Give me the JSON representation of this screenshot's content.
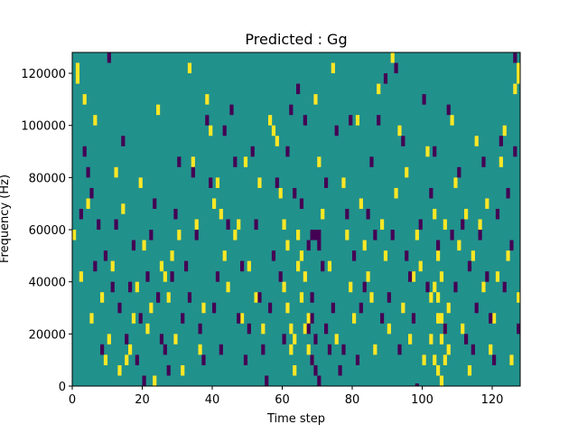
{
  "chart_data": {
    "type": "heatmap",
    "title": "Predicted : Gg",
    "xlabel": "Time step",
    "ylabel": "Frequency (Hz)",
    "xlim": [
      0,
      128
    ],
    "ylim": [
      0,
      128000
    ],
    "x_ticks": [
      0,
      20,
      40,
      60,
      80,
      100,
      120
    ],
    "y_ticks": [
      0,
      20000,
      40000,
      60000,
      80000,
      100000,
      120000
    ],
    "x_tick_labels": [
      "0",
      "20",
      "40",
      "60",
      "80",
      "100",
      "120"
    ],
    "y_tick_labels": [
      "0",
      "20000",
      "40000",
      "60000",
      "80000",
      "100000",
      "120000"
    ],
    "grid": false,
    "colormap": "viridis",
    "color_levels": {
      "low": "#440154",
      "mid": "#21918c",
      "high": "#fde725"
    },
    "background_level": "mid",
    "bin_height_hz": 4000,
    "high_cells": [
      [
        1,
        123
      ],
      [
        1,
        119
      ],
      [
        3,
        111
      ],
      [
        4,
        71
      ],
      [
        6,
        103
      ],
      [
        12,
        83
      ],
      [
        14,
        69
      ],
      [
        10,
        19
      ],
      [
        9,
        11
      ],
      [
        13,
        7
      ],
      [
        16,
        15
      ],
      [
        17,
        27
      ],
      [
        18,
        39
      ],
      [
        20,
        55
      ],
      [
        21,
        23
      ],
      [
        22,
        31
      ],
      [
        23,
        3
      ],
      [
        25,
        47
      ],
      [
        26,
        43
      ],
      [
        27,
        35
      ],
      [
        28,
        51
      ],
      [
        29,
        19
      ],
      [
        31,
        7
      ],
      [
        33,
        123
      ],
      [
        34,
        87
      ],
      [
        35,
        63
      ],
      [
        36,
        15
      ],
      [
        38,
        111
      ],
      [
        39,
        99
      ],
      [
        40,
        71
      ],
      [
        41,
        79
      ],
      [
        42,
        67
      ],
      [
        44,
        39
      ],
      [
        46,
        59
      ],
      [
        48,
        27
      ],
      [
        50,
        47
      ],
      [
        52,
        35
      ],
      [
        54,
        23
      ],
      [
        56,
        103
      ],
      [
        58,
        95
      ],
      [
        59,
        75
      ],
      [
        60,
        63
      ],
      [
        61,
        55
      ],
      [
        61,
        31
      ],
      [
        62,
        15
      ],
      [
        63,
        7
      ],
      [
        64,
        59
      ],
      [
        65,
        51
      ],
      [
        66,
        43
      ],
      [
        67,
        27
      ],
      [
        68,
        11
      ],
      [
        70,
        87
      ],
      [
        71,
        67
      ],
      [
        73,
        47
      ],
      [
        75,
        19
      ],
      [
        77,
        79
      ],
      [
        78,
        59
      ],
      [
        79,
        39
      ],
      [
        80,
        27
      ],
      [
        82,
        71
      ],
      [
        83,
        55
      ],
      [
        84,
        43
      ],
      [
        85,
        35
      ],
      [
        86,
        15
      ],
      [
        88,
        63
      ],
      [
        89,
        51
      ],
      [
        90,
        23
      ],
      [
        91,
        127
      ],
      [
        92,
        75
      ],
      [
        94,
        31
      ],
      [
        96,
        19
      ],
      [
        97,
        43
      ],
      [
        98,
        59
      ],
      [
        100,
        11
      ],
      [
        101,
        91
      ],
      [
        102,
        35
      ],
      [
        103,
        67
      ],
      [
        104,
        51
      ],
      [
        104,
        27
      ],
      [
        105,
        43
      ],
      [
        105,
        19
      ],
      [
        106,
        63
      ],
      [
        106,
        11
      ],
      [
        107,
        31
      ],
      [
        108,
        103
      ],
      [
        109,
        79
      ],
      [
        110,
        55
      ],
      [
        111,
        23
      ],
      [
        113,
        7
      ],
      [
        115,
        95
      ],
      [
        117,
        39
      ],
      [
        118,
        71
      ],
      [
        120,
        27
      ],
      [
        122,
        87
      ],
      [
        124,
        51
      ],
      [
        125,
        11
      ],
      [
        126,
        115
      ],
      [
        127,
        123
      ],
      [
        127,
        119
      ],
      [
        127,
        35
      ],
      [
        0,
        59
      ],
      [
        2,
        43
      ],
      [
        5,
        27
      ],
      [
        8,
        35
      ],
      [
        11,
        47
      ],
      [
        15,
        11
      ],
      [
        19,
        79
      ],
      [
        24,
        107
      ],
      [
        30,
        59
      ],
      [
        37,
        31
      ],
      [
        43,
        51
      ],
      [
        47,
        63
      ],
      [
        49,
        87
      ],
      [
        53,
        79
      ],
      [
        57,
        99
      ],
      [
        69,
        111
      ],
      [
        74,
        123
      ],
      [
        81,
        103
      ],
      [
        87,
        115
      ],
      [
        93,
        99
      ],
      [
        95,
        83
      ],
      [
        99,
        47
      ],
      [
        112,
        67
      ],
      [
        114,
        51
      ],
      [
        116,
        63
      ],
      [
        119,
        15
      ],
      [
        121,
        43
      ],
      [
        123,
        99
      ],
      [
        62,
        23
      ],
      [
        63,
        19
      ],
      [
        64,
        47
      ],
      [
        60,
        39
      ],
      [
        65,
        35
      ],
      [
        66,
        23
      ],
      [
        67,
        15
      ],
      [
        103,
        39
      ],
      [
        104,
        35
      ],
      [
        105,
        27
      ],
      [
        106,
        23
      ],
      [
        102,
        19
      ],
      [
        107,
        15
      ],
      [
        103,
        11
      ],
      [
        104,
        7
      ],
      [
        105,
        3
      ]
    ],
    "low_cells": [
      [
        10,
        127
      ],
      [
        4,
        83
      ],
      [
        5,
        75
      ],
      [
        7,
        63
      ],
      [
        9,
        51
      ],
      [
        11,
        39
      ],
      [
        13,
        31
      ],
      [
        15,
        19
      ],
      [
        18,
        11
      ],
      [
        20,
        3
      ],
      [
        21,
        43
      ],
      [
        22,
        59
      ],
      [
        24,
        35
      ],
      [
        26,
        15
      ],
      [
        27,
        7
      ],
      [
        29,
        67
      ],
      [
        31,
        27
      ],
      [
        32,
        47
      ],
      [
        34,
        83
      ],
      [
        36,
        23
      ],
      [
        38,
        103
      ],
      [
        40,
        31
      ],
      [
        42,
        15
      ],
      [
        43,
        99
      ],
      [
        45,
        107
      ],
      [
        47,
        27
      ],
      [
        49,
        11
      ],
      [
        51,
        91
      ],
      [
        53,
        35
      ],
      [
        55,
        3
      ],
      [
        57,
        51
      ],
      [
        59,
        43
      ],
      [
        60,
        19
      ],
      [
        62,
        107
      ],
      [
        65,
        71
      ],
      [
        67,
        55
      ],
      [
        68,
        35
      ],
      [
        69,
        59
      ],
      [
        70,
        55
      ],
      [
        71,
        47
      ],
      [
        72,
        23
      ],
      [
        73,
        15
      ],
      [
        74,
        31
      ],
      [
        76,
        7
      ],
      [
        78,
        67
      ],
      [
        80,
        51
      ],
      [
        81,
        11
      ],
      [
        83,
        39
      ],
      [
        85,
        87
      ],
      [
        86,
        59
      ],
      [
        87,
        103
      ],
      [
        88,
        27
      ],
      [
        89,
        119
      ],
      [
        90,
        35
      ],
      [
        91,
        59
      ],
      [
        92,
        123
      ],
      [
        93,
        15
      ],
      [
        95,
        51
      ],
      [
        97,
        27
      ],
      [
        98,
        0
      ],
      [
        99,
        63
      ],
      [
        100,
        111
      ],
      [
        101,
        39
      ],
      [
        102,
        75
      ],
      [
        103,
        91
      ],
      [
        104,
        55
      ],
      [
        106,
        23
      ],
      [
        107,
        107
      ],
      [
        109,
        39
      ],
      [
        110,
        83
      ],
      [
        111,
        63
      ],
      [
        113,
        47
      ],
      [
        114,
        15
      ],
      [
        115,
        31
      ],
      [
        116,
        59
      ],
      [
        117,
        87
      ],
      [
        118,
        43
      ],
      [
        119,
        27
      ],
      [
        120,
        11
      ],
      [
        121,
        67
      ],
      [
        122,
        95
      ],
      [
        123,
        39
      ],
      [
        124,
        75
      ],
      [
        125,
        55
      ],
      [
        126,
        91
      ],
      [
        127,
        23
      ],
      [
        2,
        67
      ],
      [
        3,
        91
      ],
      [
        6,
        47
      ],
      [
        8,
        15
      ],
      [
        12,
        63
      ],
      [
        14,
        95
      ],
      [
        16,
        39
      ],
      [
        17,
        55
      ],
      [
        19,
        27
      ],
      [
        23,
        71
      ],
      [
        25,
        19
      ],
      [
        28,
        43
      ],
      [
        30,
        87
      ],
      [
        33,
        35
      ],
      [
        35,
        59
      ],
      [
        37,
        11
      ],
      [
        39,
        79
      ],
      [
        41,
        43
      ],
      [
        44,
        63
      ],
      [
        46,
        87
      ],
      [
        48,
        47
      ],
      [
        50,
        23
      ],
      [
        52,
        63
      ],
      [
        54,
        15
      ],
      [
        56,
        31
      ],
      [
        58,
        79
      ],
      [
        61,
        91
      ],
      [
        63,
        75
      ],
      [
        64,
        115
      ],
      [
        66,
        103
      ],
      [
        69,
        19
      ],
      [
        72,
        79
      ],
      [
        75,
        99
      ],
      [
        77,
        15
      ],
      [
        79,
        103
      ],
      [
        82,
        31
      ],
      [
        84,
        67
      ],
      [
        94,
        95
      ],
      [
        96,
        43
      ],
      [
        108,
        59
      ],
      [
        112,
        19
      ],
      [
        126,
        127
      ],
      [
        68,
        59
      ],
      [
        70,
        59
      ],
      [
        68,
        11
      ],
      [
        69,
        7
      ],
      [
        70,
        3
      ],
      [
        67,
        23
      ],
      [
        68,
        27
      ]
    ]
  }
}
